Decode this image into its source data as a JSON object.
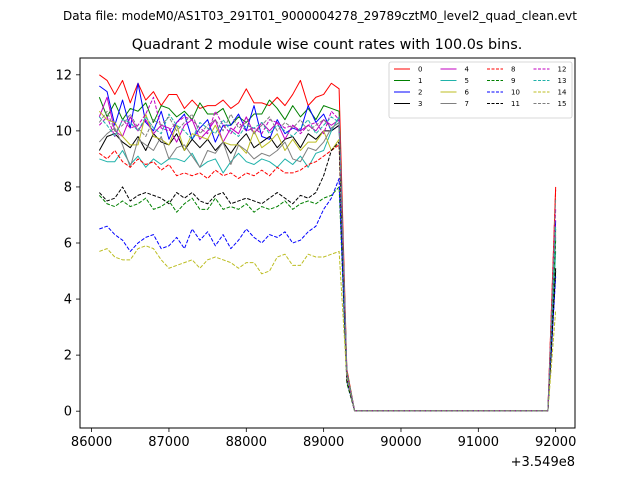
{
  "suptitle": "Data file: modeM0/AS1T03_291T01_9000004278_29789cztM0_level2_quad_clean.evt",
  "chart_data": {
    "type": "line",
    "title": "Quadrant 2 module wise count rates with 100.0s bins.",
    "xlabel": "",
    "ylabel": "",
    "x_offset_label": "+3.549e8",
    "xlim": [
      85850,
      92250
    ],
    "ylim": [
      -0.6,
      12.6
    ],
    "xticks": [
      86000,
      87000,
      88000,
      89000,
      90000,
      91000,
      92000
    ],
    "yticks": [
      0,
      2,
      4,
      6,
      8,
      10,
      12
    ],
    "grid": false,
    "legend": {
      "position": "top-right",
      "columns": 4
    },
    "x_note": "x values are in seconds, offset by 3.549e8",
    "x": [
      86100,
      86200,
      86300,
      86400,
      86500,
      86600,
      86700,
      86800,
      86900,
      87000,
      87100,
      87200,
      87300,
      87400,
      87500,
      87600,
      87700,
      87800,
      87900,
      88000,
      88100,
      88200,
      88300,
      88400,
      88500,
      88600,
      88700,
      88800,
      88900,
      89000,
      89100,
      89200,
      89300,
      89400,
      89500,
      89600,
      89700,
      89800,
      89900,
      90000,
      90100,
      90200,
      90300,
      90400,
      90500,
      90600,
      90700,
      90800,
      90900,
      91000,
      91100,
      91200,
      91300,
      91400,
      91500,
      91600,
      91700,
      91800,
      91900,
      92000
    ],
    "series": [
      {
        "name": "0",
        "color": "#ff0000",
        "dash": "solid",
        "values": [
          12.0,
          11.8,
          11.3,
          11.8,
          11.0,
          11.7,
          11.1,
          11.4,
          10.9,
          11.3,
          11.3,
          10.8,
          11.1,
          10.8,
          10.9,
          10.9,
          11.1,
          10.8,
          11.0,
          11.5,
          11.0,
          11.0,
          10.9,
          11.2,
          10.9,
          11.3,
          11.8,
          10.9,
          11.2,
          11.3,
          11.7,
          11.5,
          1.5,
          0.02,
          0.02,
          0.02,
          0.02,
          0.02,
          0.02,
          0.02,
          0.02,
          0.02,
          0.02,
          0.02,
          0.02,
          0.02,
          0.02,
          0.02,
          0.02,
          0.02,
          0.02,
          0.02,
          0.02,
          0.02,
          0.02,
          0.02,
          0.02,
          0.02,
          0.02,
          8.0
        ]
      },
      {
        "name": "1",
        "color": "#008000",
        "dash": "solid",
        "values": [
          11.2,
          10.5,
          11.0,
          10.4,
          10.8,
          10.7,
          11.0,
          10.3,
          10.9,
          10.8,
          10.5,
          10.7,
          10.4,
          11.0,
          10.6,
          10.6,
          10.8,
          10.2,
          10.5,
          10.3,
          10.6,
          10.6,
          11.1,
          10.8,
          10.4,
          10.9,
          10.5,
          10.8,
          10.4,
          10.9,
          10.8,
          10.7,
          1.4,
          0.02,
          0.02,
          0.02,
          0.02,
          0.02,
          0.02,
          0.02,
          0.02,
          0.02,
          0.02,
          0.02,
          0.02,
          0.02,
          0.02,
          0.02,
          0.02,
          0.02,
          0.02,
          0.02,
          0.02,
          0.02,
          0.02,
          0.02,
          0.02,
          0.02,
          0.02,
          6.5
        ]
      },
      {
        "name": "2",
        "color": "#0000ff",
        "dash": "solid",
        "values": [
          11.6,
          11.4,
          10.2,
          11.1,
          10.1,
          11.7,
          10.3,
          10.0,
          10.7,
          9.7,
          10.3,
          10.6,
          9.7,
          10.1,
          10.4,
          9.6,
          10.2,
          10.2,
          10.6,
          10.0,
          10.9,
          9.8,
          9.7,
          10.4,
          9.9,
          10.1,
          10.0,
          10.9,
          10.3,
          10.6,
          10.0,
          10.2,
          1.3,
          0.02,
          0.02,
          0.02,
          0.02,
          0.02,
          0.02,
          0.02,
          0.02,
          0.02,
          0.02,
          0.02,
          0.02,
          0.02,
          0.02,
          0.02,
          0.02,
          0.02,
          0.02,
          0.02,
          0.02,
          0.02,
          0.02,
          0.02,
          0.02,
          0.02,
          0.02,
          6.8
        ]
      },
      {
        "name": "3",
        "color": "#000000",
        "dash": "solid",
        "values": [
          9.3,
          9.8,
          9.9,
          9.6,
          9.4,
          9.8,
          9.3,
          9.9,
          9.6,
          9.5,
          9.9,
          9.3,
          9.7,
          9.4,
          9.7,
          9.3,
          9.6,
          9.2,
          9.6,
          9.9,
          9.4,
          9.6,
          9.8,
          9.4,
          9.7,
          9.8,
          9.4,
          9.9,
          9.7,
          10.0,
          10.0,
          10.2,
          1.2,
          0.02,
          0.02,
          0.02,
          0.02,
          0.02,
          0.02,
          0.02,
          0.02,
          0.02,
          0.02,
          0.02,
          0.02,
          0.02,
          0.02,
          0.02,
          0.02,
          0.02,
          0.02,
          0.02,
          0.02,
          0.02,
          0.02,
          0.02,
          0.02,
          0.02,
          0.02,
          5.0
        ]
      },
      {
        "name": "4",
        "color": "#c000c0",
        "dash": "solid",
        "values": [
          10.5,
          11.2,
          10.0,
          9.8,
          10.5,
          10.0,
          10.4,
          9.9,
          10.2,
          10.1,
          9.6,
          10.2,
          10.4,
          9.7,
          10.0,
          10.4,
          9.6,
          10.1,
          9.9,
          10.5,
          9.9,
          10.3,
          10.0,
          10.3,
          9.7,
          10.2,
          10.0,
          10.2,
          10.0,
          10.4,
          10.2,
          10.4,
          1.3,
          0.02,
          0.02,
          0.02,
          0.02,
          0.02,
          0.02,
          0.02,
          0.02,
          0.02,
          0.02,
          0.02,
          0.02,
          0.02,
          0.02,
          0.02,
          0.02,
          0.02,
          0.02,
          0.02,
          0.02,
          0.02,
          0.02,
          0.02,
          0.02,
          0.02,
          0.02,
          6.2
        ]
      },
      {
        "name": "5",
        "color": "#20b2aa",
        "dash": "solid",
        "values": [
          9.0,
          8.9,
          8.9,
          9.3,
          8.8,
          9.1,
          8.7,
          9.0,
          8.8,
          9.0,
          9.0,
          8.9,
          9.2,
          8.7,
          8.9,
          9.0,
          8.5,
          8.9,
          9.2,
          8.9,
          8.8,
          9.0,
          8.9,
          8.7,
          9.0,
          8.8,
          9.1,
          8.7,
          9.2,
          9.3,
          10.0,
          10.5,
          1.2,
          0.02,
          0.02,
          0.02,
          0.02,
          0.02,
          0.02,
          0.02,
          0.02,
          0.02,
          0.02,
          0.02,
          0.02,
          0.02,
          0.02,
          0.02,
          0.02,
          0.02,
          0.02,
          0.02,
          0.02,
          0.02,
          0.02,
          0.02,
          0.02,
          0.02,
          0.02,
          5.7
        ]
      },
      {
        "name": "6",
        "color": "#bcbd22",
        "dash": "solid",
        "values": [
          10.7,
          10.4,
          10.3,
          9.8,
          9.5,
          9.5,
          10.6,
          9.8,
          9.7,
          9.5,
          10.2,
          9.3,
          9.9,
          9.8,
          9.7,
          10.2,
          9.6,
          9.5,
          9.5,
          9.2,
          10.0,
          9.4,
          9.6,
          9.9,
          9.3,
          9.7,
          9.3,
          9.6,
          9.6,
          10.0,
          9.3,
          9.7,
          1.2,
          0.02,
          0.02,
          0.02,
          0.02,
          0.02,
          0.02,
          0.02,
          0.02,
          0.02,
          0.02,
          0.02,
          0.02,
          0.02,
          0.02,
          0.02,
          0.02,
          0.02,
          0.02,
          0.02,
          0.02,
          0.02,
          0.02,
          0.02,
          0.02,
          0.02,
          0.02,
          6.4
        ]
      },
      {
        "name": "7",
        "color": "#7f7f7f",
        "dash": "solid",
        "values": [
          9.6,
          9.9,
          10.1,
          9.5,
          8.7,
          9.7,
          9.5,
          9.3,
          9.8,
          9.0,
          9.4,
          9.5,
          9.1,
          8.7,
          9.3,
          9.2,
          9.6,
          8.8,
          9.5,
          9.3,
          9.0,
          9.2,
          9.1,
          9.3,
          9.6,
          9.0,
          8.9,
          9.4,
          9.3,
          9.6,
          10.1,
          10.3,
          1.3,
          0.02,
          0.02,
          0.02,
          0.02,
          0.02,
          0.02,
          0.02,
          0.02,
          0.02,
          0.02,
          0.02,
          0.02,
          0.02,
          0.02,
          0.02,
          0.02,
          0.02,
          0.02,
          0.02,
          0.02,
          0.02,
          0.02,
          0.02,
          0.02,
          0.02,
          0.02,
          6.3
        ]
      },
      {
        "name": "8",
        "color": "#ff0000",
        "dash": "dashed",
        "values": [
          9.2,
          9.0,
          9.3,
          8.9,
          8.7,
          9.0,
          8.8,
          8.9,
          8.6,
          8.8,
          8.4,
          8.5,
          8.4,
          8.5,
          8.3,
          8.6,
          8.4,
          8.5,
          8.3,
          8.5,
          8.4,
          8.6,
          8.4,
          8.7,
          8.5,
          8.5,
          8.6,
          8.8,
          8.9,
          9.1,
          9.3,
          9.5,
          1.2,
          0.02,
          0.02,
          0.02,
          0.02,
          0.02,
          0.02,
          0.02,
          0.02,
          0.02,
          0.02,
          0.02,
          0.02,
          0.02,
          0.02,
          0.02,
          0.02,
          0.02,
          0.02,
          0.02,
          0.02,
          0.02,
          0.02,
          0.02,
          0.02,
          0.02,
          0.02,
          7.9
        ]
      },
      {
        "name": "9",
        "color": "#008000",
        "dash": "dashed",
        "values": [
          7.7,
          7.4,
          7.3,
          7.5,
          7.3,
          7.4,
          7.6,
          7.2,
          7.3,
          7.5,
          7.1,
          7.4,
          7.6,
          7.2,
          7.2,
          7.6,
          7.2,
          7.3,
          7.2,
          7.4,
          7.1,
          7.3,
          7.2,
          7.3,
          7.5,
          7.2,
          7.4,
          7.5,
          7.4,
          7.6,
          7.7,
          8.0,
          1.0,
          0.02,
          0.02,
          0.02,
          0.02,
          0.02,
          0.02,
          0.02,
          0.02,
          0.02,
          0.02,
          0.02,
          0.02,
          0.02,
          0.02,
          0.02,
          0.02,
          0.02,
          0.02,
          0.02,
          0.02,
          0.02,
          0.02,
          0.02,
          0.02,
          0.02,
          0.02,
          6.1
        ]
      },
      {
        "name": "10",
        "color": "#0000ff",
        "dash": "dashed",
        "values": [
          6.5,
          6.6,
          6.3,
          6.1,
          5.7,
          6.0,
          6.2,
          6.3,
          5.8,
          5.9,
          6.2,
          5.8,
          6.5,
          6.1,
          6.4,
          5.9,
          6.3,
          5.8,
          6.1,
          6.5,
          6.2,
          6.0,
          6.3,
          6.2,
          6.4,
          6.0,
          6.1,
          6.4,
          6.6,
          7.2,
          7.6,
          8.3,
          1.1,
          0.02,
          0.02,
          0.02,
          0.02,
          0.02,
          0.02,
          0.02,
          0.02,
          0.02,
          0.02,
          0.02,
          0.02,
          0.02,
          0.02,
          0.02,
          0.02,
          0.02,
          0.02,
          0.02,
          0.02,
          0.02,
          0.02,
          0.02,
          0.02,
          0.02,
          0.02,
          4.8
        ]
      },
      {
        "name": "11",
        "color": "#000000",
        "dash": "dashed",
        "values": [
          7.8,
          7.5,
          7.6,
          8.0,
          7.5,
          7.7,
          7.8,
          7.7,
          7.6,
          7.4,
          7.8,
          7.6,
          7.8,
          7.5,
          7.4,
          7.7,
          7.8,
          7.4,
          7.5,
          7.6,
          7.5,
          7.4,
          7.6,
          7.8,
          7.6,
          7.4,
          7.7,
          7.6,
          7.8,
          8.4,
          9.3,
          9.6,
          1.1,
          0.02,
          0.02,
          0.02,
          0.02,
          0.02,
          0.02,
          0.02,
          0.02,
          0.02,
          0.02,
          0.02,
          0.02,
          0.02,
          0.02,
          0.02,
          0.02,
          0.02,
          0.02,
          0.02,
          0.02,
          0.02,
          0.02,
          0.02,
          0.02,
          0.02,
          0.02,
          5.1
        ]
      },
      {
        "name": "12",
        "color": "#c000c0",
        "dash": "dashed",
        "values": [
          10.2,
          10.5,
          9.8,
          10.4,
          10.1,
          10.2,
          10.6,
          11.2,
          10.1,
          10.0,
          10.3,
          10.5,
          10.4,
          10.1,
          9.9,
          10.7,
          10.2,
          9.9,
          10.3,
          10.0,
          10.1,
          9.9,
          10.4,
          10.3,
          10.1,
          10.2,
          9.9,
          10.2,
          10.3,
          9.9,
          10.7,
          10.4,
          1.3,
          0.02,
          0.02,
          0.02,
          0.02,
          0.02,
          0.02,
          0.02,
          0.02,
          0.02,
          0.02,
          0.02,
          0.02,
          0.02,
          0.02,
          0.02,
          0.02,
          0.02,
          0.02,
          0.02,
          0.02,
          0.02,
          0.02,
          0.02,
          0.02,
          0.02,
          0.02,
          7.2
        ]
      },
      {
        "name": "13",
        "color": "#20b2aa",
        "dash": "dashed",
        "values": [
          10.5,
          10.2,
          9.8,
          10.4,
          10.3,
          10.0,
          10.5,
          10.1,
          9.9,
          10.6,
          10.2,
          10.0,
          9.7,
          10.3,
          10.1,
          9.9,
          10.4,
          10.0,
          9.8,
          10.2,
          10.1,
          10.3,
          9.9,
          10.2,
          10.0,
          9.8,
          10.1,
          10.4,
          9.9,
          10.2,
          10.5,
          10.3,
          1.4,
          0.02,
          0.02,
          0.02,
          0.02,
          0.02,
          0.02,
          0.02,
          0.02,
          0.02,
          0.02,
          0.02,
          0.02,
          0.02,
          0.02,
          0.02,
          0.02,
          0.02,
          0.02,
          0.02,
          0.02,
          0.02,
          0.02,
          0.02,
          0.02,
          0.02,
          0.02,
          6.6
        ]
      },
      {
        "name": "14",
        "color": "#bcbd22",
        "dash": "dashed",
        "values": [
          5.7,
          5.8,
          5.5,
          5.4,
          5.4,
          5.8,
          5.9,
          5.8,
          5.4,
          5.1,
          5.2,
          5.3,
          5.4,
          5.1,
          5.4,
          5.5,
          5.4,
          5.3,
          5.1,
          5.3,
          5.3,
          4.9,
          5.0,
          5.5,
          5.6,
          5.2,
          5.2,
          5.6,
          5.5,
          5.5,
          5.6,
          5.7,
          1.2,
          0.02,
          0.02,
          0.02,
          0.02,
          0.02,
          0.02,
          0.02,
          0.02,
          0.02,
          0.02,
          0.02,
          0.02,
          0.02,
          0.02,
          0.02,
          0.02,
          0.02,
          0.02,
          0.02,
          0.02,
          0.02,
          0.02,
          0.02,
          0.02,
          0.02,
          0.02,
          3.6
        ]
      },
      {
        "name": "15",
        "color": "#7f7f7f",
        "dash": "dashed",
        "values": [
          10.3,
          10.7,
          10.0,
          10.2,
          10.6,
          10.1,
          9.8,
          10.4,
          10.2,
          10.5,
          10.0,
          10.3,
          10.6,
          9.9,
          10.2,
          10.4,
          10.0,
          10.6,
          10.1,
          10.3,
          9.9,
          10.2,
          10.5,
          10.0,
          10.3,
          10.1,
          10.4,
          10.0,
          10.2,
          10.4,
          10.1,
          10.3,
          1.3,
          0.02,
          0.02,
          0.02,
          0.02,
          0.02,
          0.02,
          0.02,
          0.02,
          0.02,
          0.02,
          0.02,
          0.02,
          0.02,
          0.02,
          0.02,
          0.02,
          0.02,
          0.02,
          0.02,
          0.02,
          0.02,
          0.02,
          0.02,
          0.02,
          0.02,
          0.02,
          7.6
        ]
      }
    ]
  }
}
